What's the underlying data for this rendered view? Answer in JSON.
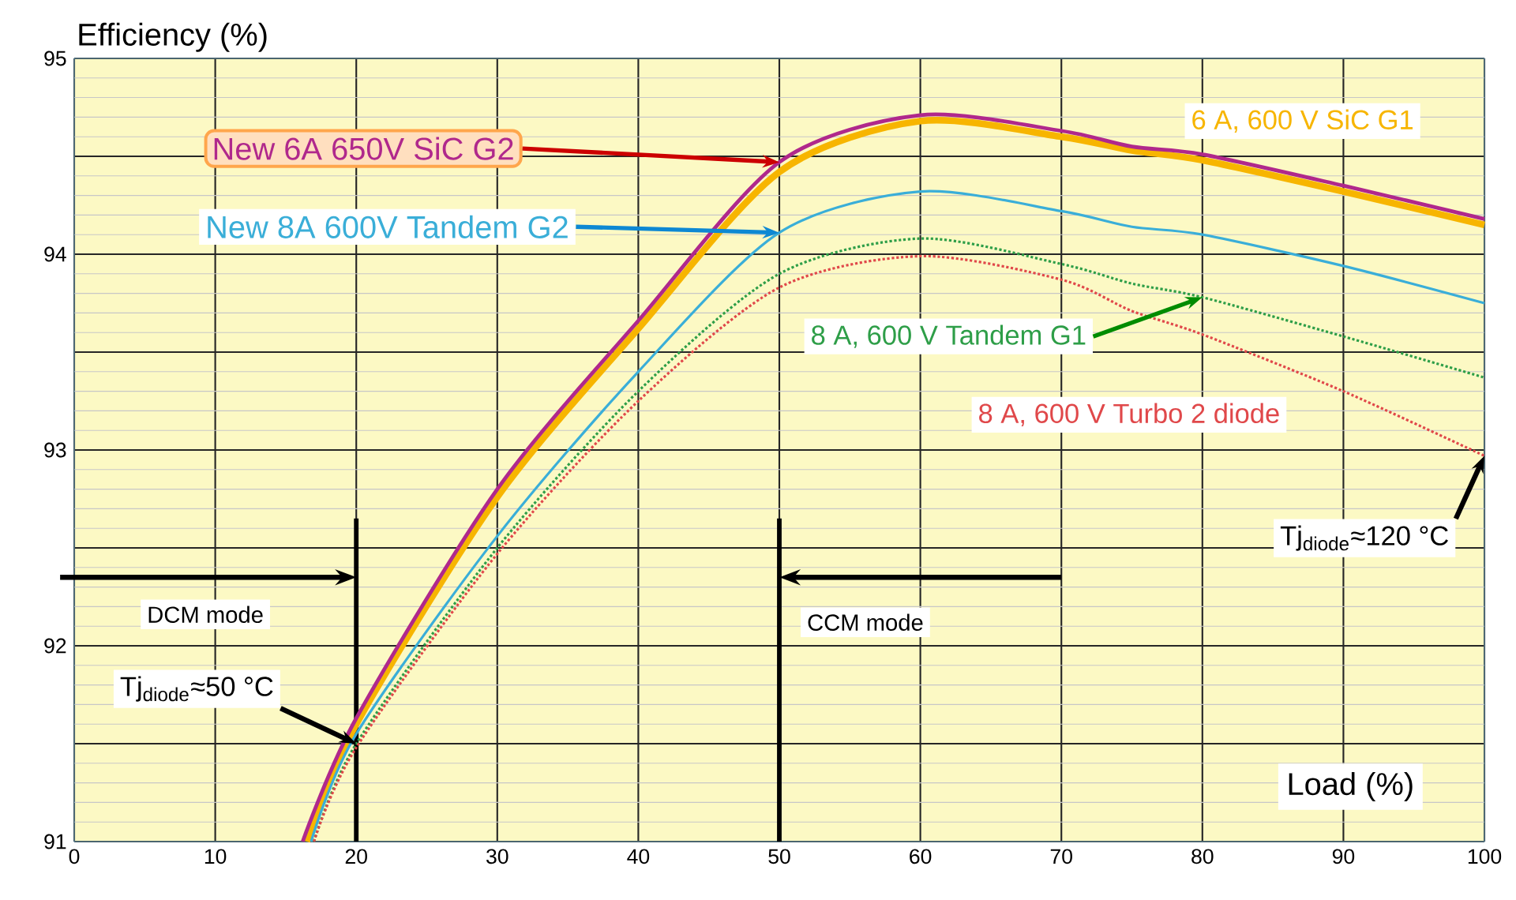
{
  "chart_data": {
    "type": "line",
    "xlabel": "Load (%)",
    "ylabel": "Efficiency (%)",
    "xlim": [
      0,
      100
    ],
    "xticks": [
      0,
      10,
      20,
      30,
      40,
      50,
      60,
      70,
      80,
      90,
      100
    ],
    "ylim": [
      91,
      95
    ],
    "yticks": [
      91,
      {
        "value": 91.5,
        "label": null
      },
      92,
      {
        "value": 92.5,
        "label": null
      },
      93,
      {
        "value": 93.5,
        "label": null
      },
      94,
      {
        "value": 94.5,
        "label": null
      },
      95
    ],
    "grid": true,
    "series": [
      {
        "name": "New 6A 650V SiC G2",
        "color": "#b0288c",
        "x": [
          16.2,
          20,
          30,
          40,
          50,
          60,
          70,
          75,
          80,
          90,
          100
        ],
        "values": [
          91,
          91.63,
          92.8,
          93.66,
          94.47,
          94.71,
          94.63,
          94.55,
          94.51,
          94.35,
          94.18
        ]
      },
      {
        "name": "6 A, 600 V SiC G1",
        "color": "#f7b500",
        "x": [
          16.5,
          20,
          30,
          40,
          50,
          60,
          70,
          75,
          80,
          90,
          100
        ],
        "values": [
          91,
          91.6,
          92.76,
          93.62,
          94.42,
          94.68,
          94.6,
          94.53,
          94.48,
          94.32,
          94.15
        ]
      },
      {
        "name": "New 8A 600V Tandem G2",
        "color": "#3aaed8",
        "x": [
          16.8,
          20,
          30,
          40,
          50,
          60,
          70,
          75,
          80,
          90,
          100
        ],
        "values": [
          91,
          91.55,
          92.56,
          93.4,
          94.11,
          94.32,
          94.22,
          94.14,
          94.1,
          93.94,
          93.75
        ]
      },
      {
        "name": "8 A, 600 V Tandem G1",
        "color": "#2e9e48",
        "line_style": "dotted",
        "x": [
          17,
          20,
          30,
          40,
          50,
          60,
          70,
          75,
          80,
          90,
          100
        ],
        "values": [
          91,
          91.5,
          92.5,
          93.3,
          93.9,
          94.08,
          93.95,
          93.85,
          93.78,
          93.58,
          93.37
        ]
      },
      {
        "name": "8 A, 600 V Turbo 2 diode",
        "color": "#e0484a",
        "line_style": "dotted",
        "x": [
          17,
          20,
          30,
          40,
          50,
          60,
          70,
          75,
          80,
          90,
          100
        ],
        "values": [
          91,
          91.48,
          92.47,
          93.25,
          93.83,
          93.99,
          93.87,
          93.71,
          93.59,
          93.3,
          92.97
        ]
      }
    ],
    "ref_lines": [
      {
        "axis": "x",
        "value": 20,
        "color": "#000000"
      },
      {
        "axis": "x",
        "value": 50,
        "color": "#000000"
      }
    ],
    "annotations": [
      "DCM mode",
      "CCM mode",
      {
        "text": "Tj$_{diode}$≈50 °C",
        "x": 20,
        "y": 91.5
      },
      {
        "text": "Tj$_{diode}$≈120 °C",
        "x": 100,
        "y": 92.97
      }
    ]
  }
}
